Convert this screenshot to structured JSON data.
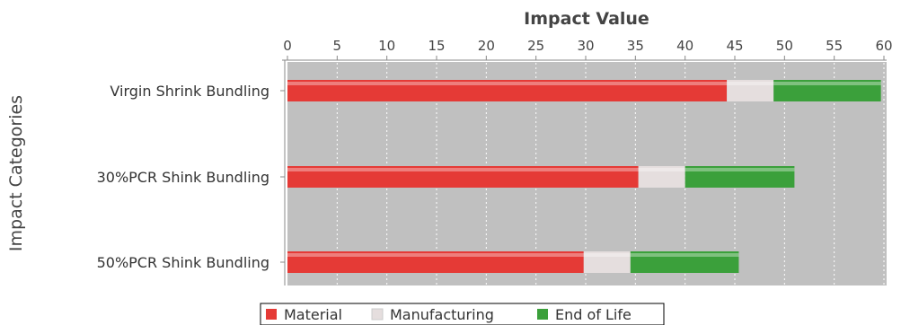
{
  "chart_data": {
    "type": "bar",
    "orientation": "horizontal",
    "stacked": true,
    "xlabel": "Impact Value",
    "ylabel": "Impact Categories",
    "xlim": [
      0,
      60
    ],
    "x_ticks": [
      0,
      5,
      10,
      15,
      20,
      25,
      30,
      35,
      40,
      45,
      50,
      55,
      60
    ],
    "grid": true,
    "legend_position": "bottom",
    "categories": [
      "Virgin Shrink Bundling",
      "30%PCR Shink Bundling",
      "50%PCR Shink Bundling"
    ],
    "series": [
      {
        "name": "Material",
        "color": "#e53a36",
        "values": [
          44.2,
          35.3,
          29.8
        ]
      },
      {
        "name": "Manufacturing",
        "color": "#e5dede",
        "values": [
          4.7,
          4.7,
          4.7
        ]
      },
      {
        "name": "End of Life",
        "color": "#3ba03b",
        "values": [
          10.8,
          11.0,
          10.9
        ]
      }
    ]
  }
}
